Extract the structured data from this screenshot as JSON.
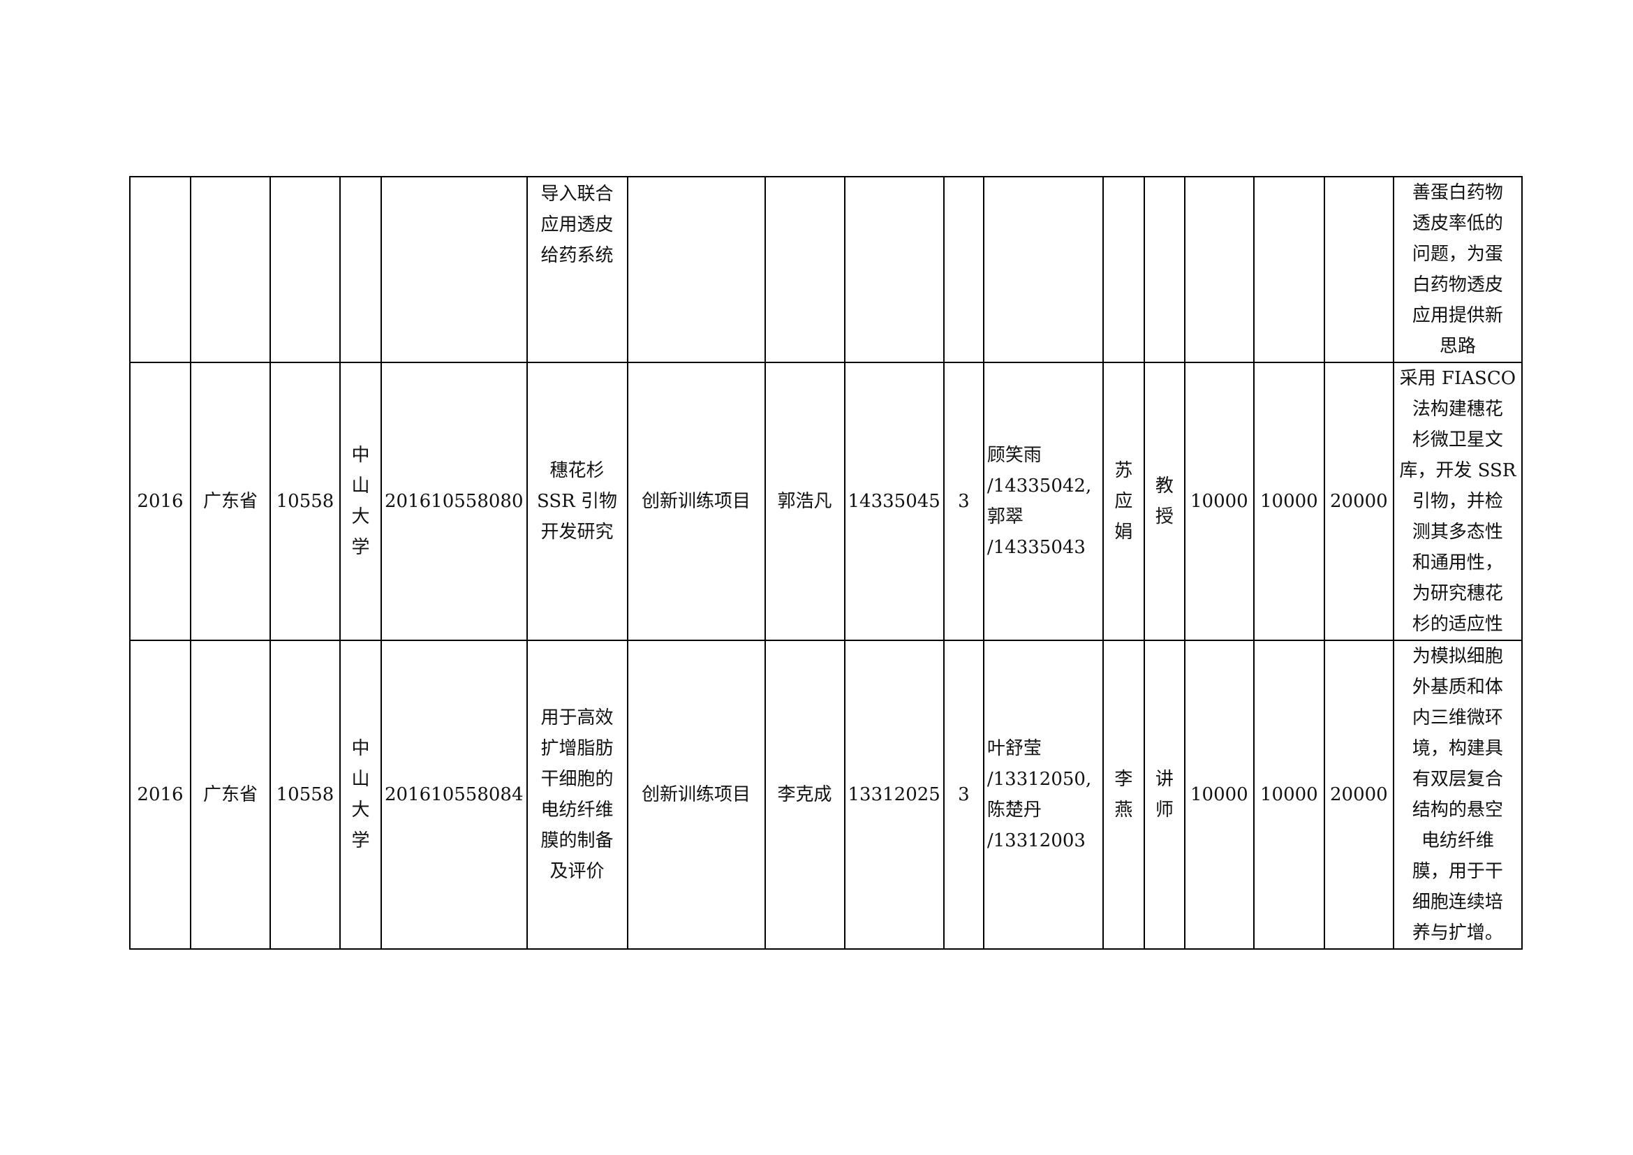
{
  "rows": [
    {
      "year": "",
      "province": "",
      "code": "",
      "university": "",
      "project_no": "",
      "project_name": "导入联合\n应用透皮\n给药系统",
      "type": "",
      "leader": "",
      "leader_id": "",
      "count": "",
      "members": "",
      "advisor": "",
      "title": "",
      "fund1": "",
      "fund2": "",
      "total": "",
      "summary": "善蛋白药物\n透皮率低的\n问题，为蛋\n白药物透皮\n应用提供新\n思路"
    },
    {
      "year": "2016",
      "province": "广东省",
      "code": "10558",
      "university": "中\n山\n大\n学",
      "project_no": "201610558080",
      "project_name": "穗花杉\nSSR 引物\n开发研究",
      "type": "创新训练项目",
      "leader": "郭浩凡",
      "leader_id": "14335045",
      "count": "3",
      "members": "顾笑雨\n/14335042,\n郭翠\n/14335043",
      "advisor": "苏\n应\n娟",
      "title": "教\n授",
      "fund1": "10000",
      "fund2": "10000",
      "total": "20000",
      "summary": "采用 FIASCO\n法构建穗花\n杉微卫星文\n库，开发 SSR\n引物，并检\n测其多态性\n和通用性，\n为研究穗花\n杉的适应性"
    },
    {
      "year": "2016",
      "province": "广东省",
      "code": "10558",
      "university": "中\n山\n大\n学",
      "project_no": "201610558084",
      "project_name": "用于高效\n扩增脂肪\n干细胞的\n电纺纤维\n膜的制备\n及评价",
      "type": "创新训练项目",
      "leader": "李克成",
      "leader_id": "13312025",
      "count": "3",
      "members": "叶舒莹\n/13312050,\n陈楚丹\n/13312003",
      "advisor": "李\n燕",
      "title": "讲\n师",
      "fund1": "10000",
      "fund2": "10000",
      "total": "20000",
      "summary": "为模拟细胞\n外基质和体\n内三维微环\n境，构建具\n有双层复合\n结构的悬空\n电纺纤维\n膜，用于干\n细胞连续培\n养与扩增。"
    }
  ]
}
